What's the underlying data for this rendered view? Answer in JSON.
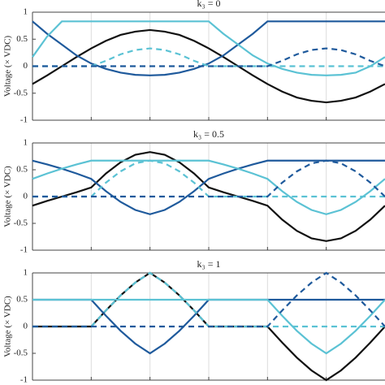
{
  "chart_data": [
    {
      "type": "line",
      "title": "k₃ = 0",
      "ylabel": "Voltage (× VDC)",
      "x": [
        0,
        15,
        30,
        45,
        60,
        75,
        90,
        105,
        120,
        135,
        150,
        165,
        180,
        195,
        210,
        225,
        240,
        255,
        270,
        285,
        300,
        315,
        330,
        345,
        360
      ],
      "xlim": [
        0,
        360
      ],
      "xticks": [
        60,
        120,
        180,
        240,
        300
      ],
      "ylim": [
        -1,
        1
      ],
      "yticks": [
        -1,
        -0.5,
        0,
        0.5,
        1
      ],
      "grid": "x",
      "series": [
        {
          "color": "#111111",
          "linestyle": "solid",
          "values": [
            -0.33,
            -0.17,
            0,
            0.17,
            0.33,
            0.47,
            0.58,
            0.64,
            0.67,
            0.64,
            0.58,
            0.47,
            0.33,
            0.17,
            0,
            -0.17,
            -0.33,
            -0.47,
            -0.58,
            -0.64,
            -0.67,
            -0.64,
            -0.58,
            -0.47,
            -0.33
          ]
        },
        {
          "color": "#1f5a9c",
          "linestyle": "solid",
          "values": [
            0.83,
            0.6,
            0.4,
            0.2,
            0.05,
            -0.05,
            -0.12,
            -0.16,
            -0.17,
            -0.16,
            -0.12,
            -0.05,
            0.05,
            0.2,
            0.4,
            0.6,
            0.83,
            0.83,
            0.83,
            0.83,
            0.83,
            0.83,
            0.83,
            0.83,
            0.83
          ]
        },
        {
          "color": "#5bc2d4",
          "linestyle": "solid",
          "values": [
            0.17,
            0.55,
            0.83,
            0.83,
            0.83,
            0.83,
            0.83,
            0.83,
            0.83,
            0.83,
            0.83,
            0.83,
            0.83,
            0.6,
            0.4,
            0.2,
            0.05,
            -0.05,
            -0.12,
            -0.16,
            -0.17,
            -0.16,
            -0.12,
            0,
            0.17
          ]
        },
        {
          "color": "#5bc2d4",
          "linestyle": "dashed",
          "values": [
            0,
            0,
            0,
            0,
            0,
            0.1,
            0.22,
            0.3,
            0.33,
            0.3,
            0.22,
            0.1,
            0,
            0,
            0,
            0,
            0,
            0,
            0,
            0,
            0,
            0,
            0,
            0,
            0
          ]
        },
        {
          "color": "#1f5a9c",
          "linestyle": "dashed",
          "values": [
            0,
            0,
            0,
            0,
            0,
            0,
            0,
            0,
            0,
            0,
            0,
            0,
            0,
            0,
            0,
            0,
            0,
            0.1,
            0.22,
            0.3,
            0.33,
            0.3,
            0.22,
            0.1,
            0
          ]
        }
      ]
    },
    {
      "type": "line",
      "title": "k₃ = 0.5",
      "ylabel": "Voltage (× VDC)",
      "x": [
        0,
        15,
        30,
        45,
        60,
        75,
        90,
        105,
        120,
        135,
        150,
        165,
        180,
        195,
        210,
        225,
        240,
        255,
        270,
        285,
        300,
        315,
        330,
        345,
        360
      ],
      "xlim": [
        0,
        360
      ],
      "xticks": [
        60,
        120,
        180,
        240,
        300
      ],
      "ylim": [
        -1,
        1
      ],
      "yticks": [
        -1,
        -0.5,
        0,
        0.5,
        1
      ],
      "grid": "x",
      "series": [
        {
          "color": "#111111",
          "linestyle": "solid",
          "values": [
            -0.17,
            -0.08,
            0,
            0.08,
            0.17,
            0.43,
            0.64,
            0.78,
            0.83,
            0.78,
            0.64,
            0.43,
            0.17,
            0.08,
            0,
            -0.08,
            -0.17,
            -0.43,
            -0.64,
            -0.78,
            -0.83,
            -0.78,
            -0.64,
            -0.43,
            -0.17
          ]
        },
        {
          "color": "#1f5a9c",
          "linestyle": "solid",
          "values": [
            0.67,
            0.6,
            0.52,
            0.43,
            0.33,
            0.1,
            -0.1,
            -0.25,
            -0.33,
            -0.25,
            -0.1,
            0.1,
            0.33,
            0.43,
            0.52,
            0.6,
            0.67,
            0.67,
            0.67,
            0.67,
            0.67,
            0.67,
            0.67,
            0.67,
            0.67
          ]
        },
        {
          "color": "#5bc2d4",
          "linestyle": "solid",
          "values": [
            0.33,
            0.43,
            0.52,
            0.6,
            0.67,
            0.67,
            0.67,
            0.67,
            0.67,
            0.67,
            0.67,
            0.67,
            0.67,
            0.6,
            0.52,
            0.43,
            0.33,
            0.1,
            -0.1,
            -0.25,
            -0.33,
            -0.25,
            -0.1,
            0.1,
            0.33
          ]
        },
        {
          "color": "#5bc2d4",
          "linestyle": "dashed",
          "values": [
            0,
            0,
            0,
            0,
            0,
            0.26,
            0.47,
            0.62,
            0.67,
            0.62,
            0.47,
            0.26,
            0,
            0,
            0,
            0,
            0,
            0,
            0,
            0,
            0,
            0,
            0,
            0,
            0
          ]
        },
        {
          "color": "#1f5a9c",
          "linestyle": "dashed",
          "values": [
            0,
            0,
            0,
            0,
            0,
            0,
            0,
            0,
            0,
            0,
            0,
            0,
            0,
            0,
            0,
            0,
            0,
            0.26,
            0.47,
            0.62,
            0.67,
            0.62,
            0.47,
            0.26,
            0
          ]
        }
      ]
    },
    {
      "type": "line",
      "title": "k₃ = 1",
      "ylabel": "Voltage (× VDC)",
      "x": [
        0,
        15,
        30,
        45,
        60,
        75,
        90,
        105,
        120,
        135,
        150,
        165,
        180,
        195,
        210,
        225,
        240,
        255,
        270,
        285,
        300,
        315,
        330,
        345,
        360
      ],
      "xlim": [
        0,
        360
      ],
      "xticks": [
        60,
        120,
        180,
        240,
        300
      ],
      "ylim": [
        -1,
        1
      ],
      "yticks": [
        -1,
        -0.5,
        0,
        0.5,
        1
      ],
      "grid": "x",
      "series": [
        {
          "color": "#111111",
          "linestyle": "solid",
          "values": [
            0,
            0,
            0,
            0,
            0,
            0.3,
            0.58,
            0.82,
            1,
            0.82,
            0.58,
            0.3,
            0,
            0,
            0,
            0,
            0,
            -0.3,
            -0.58,
            -0.82,
            -1,
            -0.82,
            -0.58,
            -0.3,
            0
          ]
        },
        {
          "color": "#1f5a9c",
          "linestyle": "solid",
          "values": [
            0.5,
            0.5,
            0.5,
            0.5,
            0.5,
            0.2,
            -0.08,
            -0.32,
            -0.5,
            -0.32,
            -0.08,
            0.2,
            0.5,
            0.5,
            0.5,
            0.5,
            0.5,
            0.5,
            0.5,
            0.5,
            0.5,
            0.5,
            0.5,
            0.5,
            0.5
          ]
        },
        {
          "color": "#5bc2d4",
          "linestyle": "solid",
          "values": [
            0.5,
            0.5,
            0.5,
            0.5,
            0.5,
            0.5,
            0.5,
            0.5,
            0.5,
            0.5,
            0.5,
            0.5,
            0.5,
            0.5,
            0.5,
            0.5,
            0.5,
            0.2,
            -0.08,
            -0.32,
            -0.5,
            -0.32,
            -0.08,
            0.2,
            0.5
          ]
        },
        {
          "color": "#5bc2d4",
          "linestyle": "dashed",
          "values": [
            0,
            0,
            0,
            0,
            0,
            0.3,
            0.58,
            0.82,
            1,
            0.82,
            0.58,
            0.3,
            0,
            0,
            0,
            0,
            0,
            0,
            0,
            0,
            0,
            0,
            0,
            0,
            0
          ]
        },
        {
          "color": "#1f5a9c",
          "linestyle": "dashed",
          "values": [
            0,
            0,
            0,
            0,
            0,
            0,
            0,
            0,
            0,
            0,
            0,
            0,
            0,
            0,
            0,
            0,
            0,
            0.3,
            0.58,
            0.82,
            1,
            0.82,
            0.58,
            0.3,
            0
          ]
        }
      ]
    }
  ]
}
